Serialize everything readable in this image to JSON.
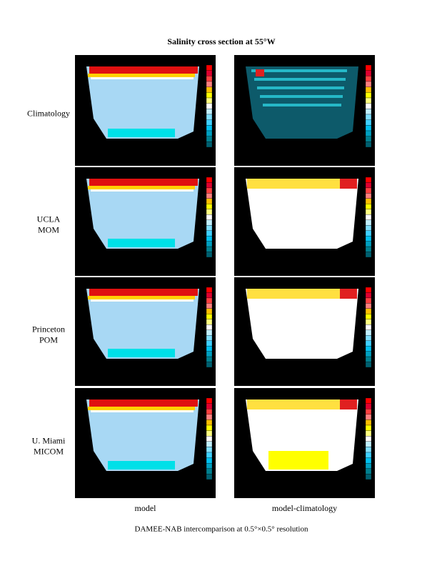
{
  "title": "Salinity cross section at 55°W",
  "rows": [
    {
      "lines": [
        "Climatology"
      ]
    },
    {
      "lines": [
        "UCLA",
        "MOM"
      ]
    },
    {
      "lines": [
        "Princeton",
        "POM"
      ]
    },
    {
      "lines": [
        "U. Miami",
        "MICOM"
      ]
    }
  ],
  "columns": [
    "model",
    "model-climatology"
  ],
  "caption": "DAMEE-NAB intercomparison at 0.5°×0.5° resolution"
}
